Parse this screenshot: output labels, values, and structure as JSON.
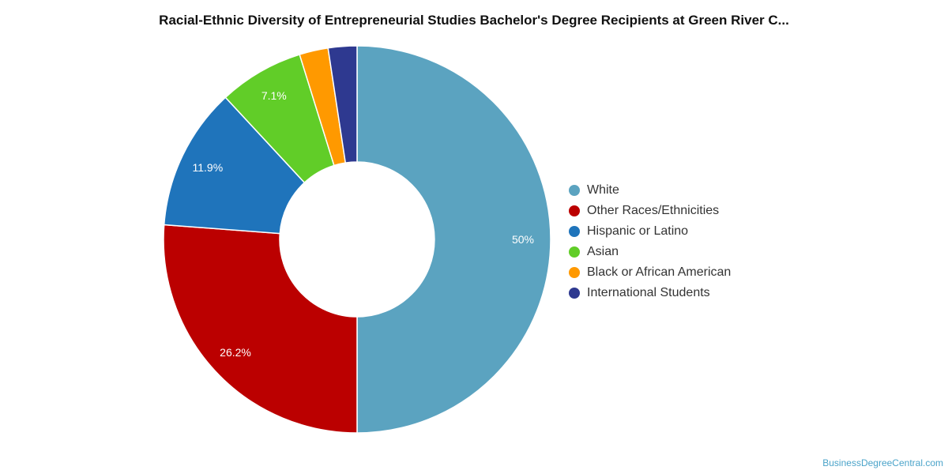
{
  "title": "Racial-Ethnic Diversity of Entrepreneurial Studies Bachelor's Degree Recipients at Green River C...",
  "credit": "BusinessDegreeCentral.com",
  "chart_data": {
    "type": "pie",
    "variant": "donut",
    "title": "Racial-Ethnic Diversity of Entrepreneurial Studies Bachelor's Degree Recipients at Green River C...",
    "legend_position": "right",
    "categories": [
      "White",
      "Other Races/Ethnicities",
      "Hispanic or Latino",
      "Asian",
      "Black or African American",
      "International Students"
    ],
    "values": [
      50,
      26.2,
      11.9,
      7.1,
      2.4,
      2.4
    ],
    "labels": [
      "50%",
      "26.2%",
      "11.9%",
      "7.1%",
      "",
      ""
    ],
    "colors": [
      "#5ba3c0",
      "#bb0000",
      "#1f74bb",
      "#61cd28",
      "#ff9900",
      "#2e3990"
    ]
  }
}
